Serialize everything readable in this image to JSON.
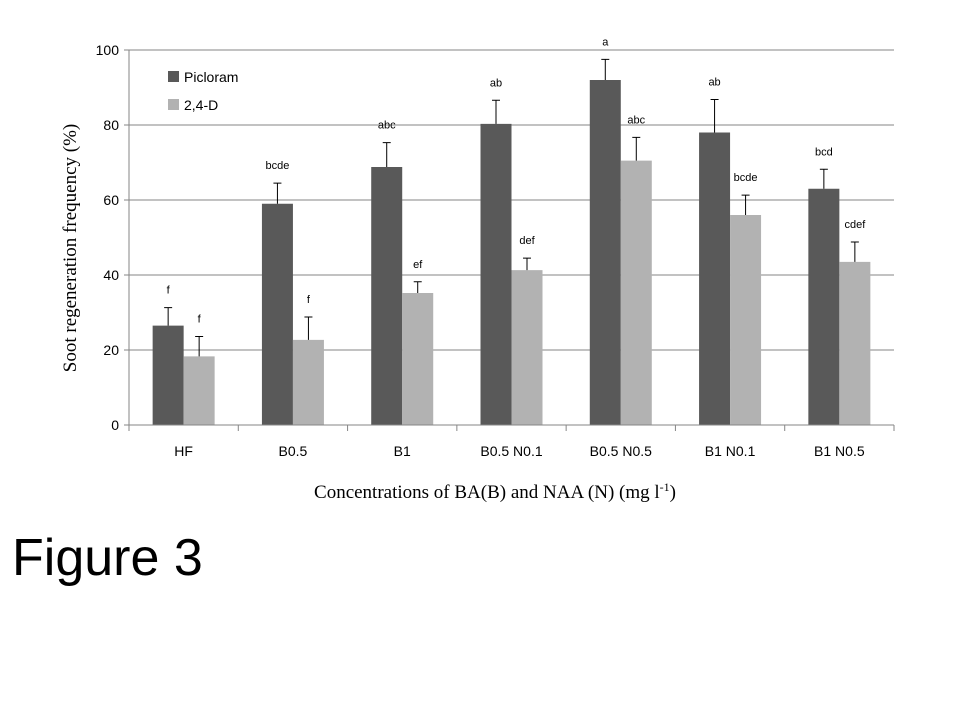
{
  "figure_label": "Figure 3",
  "chart_data": {
    "type": "bar",
    "title": "",
    "ylabel": "Soot regeneration frequency (%)",
    "xlabel": "Concentrations of BA(B) and NAA (N)  (mg l",
    "xlabel_sup": "-1",
    "xlabel_end": ")",
    "ylim": [
      0,
      100
    ],
    "yticks": [
      0,
      20,
      40,
      60,
      80,
      100
    ],
    "grid": true,
    "legend_position": "top-left",
    "categories": [
      "HF",
      "B0.5",
      "B1",
      "B0.5 N0.1",
      "B0.5 N0.5",
      "B1 N0.1",
      "B1 N0.5"
    ],
    "series": [
      {
        "name": "Picloram",
        "color": "#595959",
        "values": [
          26.5,
          59,
          68.8,
          80.3,
          92,
          78,
          63
        ],
        "errors": [
          4.8,
          5.5,
          6.5,
          6.3,
          5.5,
          8.8,
          5.2
        ],
        "labels": [
          "f",
          "bcde",
          "abc",
          "ab",
          "a",
          "ab",
          "bcd"
        ]
      },
      {
        "name": "2,4-D",
        "color": "#b2b2b2",
        "values": [
          18.3,
          22.7,
          35.2,
          41.3,
          70.5,
          56,
          43.5
        ],
        "errors": [
          5.3,
          6.1,
          3,
          3.2,
          6.2,
          5.3,
          5.3
        ],
        "labels": [
          "f",
          "f",
          "ef",
          "def",
          "abc",
          "bcde",
          "cdef"
        ]
      }
    ]
  }
}
